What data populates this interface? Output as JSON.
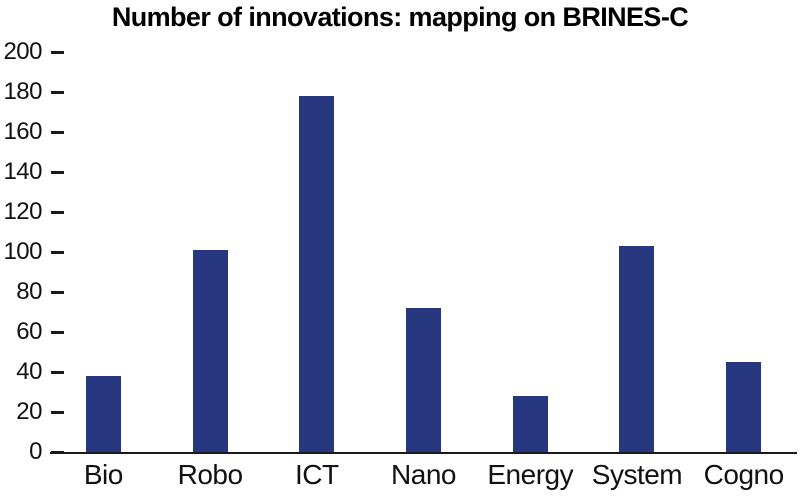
{
  "title": "Number of innovations: mapping on BRINES-C",
  "colors": {
    "bar": "#263780",
    "axis": "#1a1a1a",
    "text": "#111111",
    "background": "#ffffff"
  },
  "chart_data": {
    "type": "bar",
    "title": "Number of innovations: mapping on BRINES-C",
    "categories": [
      "Bio",
      "Robo",
      "ICT",
      "Nano",
      "Energy",
      "System",
      "Cogno"
    ],
    "values": [
      38,
      101,
      178,
      72,
      28,
      103,
      45
    ],
    "xlabel": "",
    "ylabel": "",
    "ylim": [
      0,
      200
    ],
    "yticks": [
      0,
      20,
      40,
      60,
      80,
      100,
      120,
      140,
      160,
      180,
      200
    ],
    "tick_mark": "–",
    "grid": false,
    "legend": false,
    "bar_color": "#263780"
  }
}
